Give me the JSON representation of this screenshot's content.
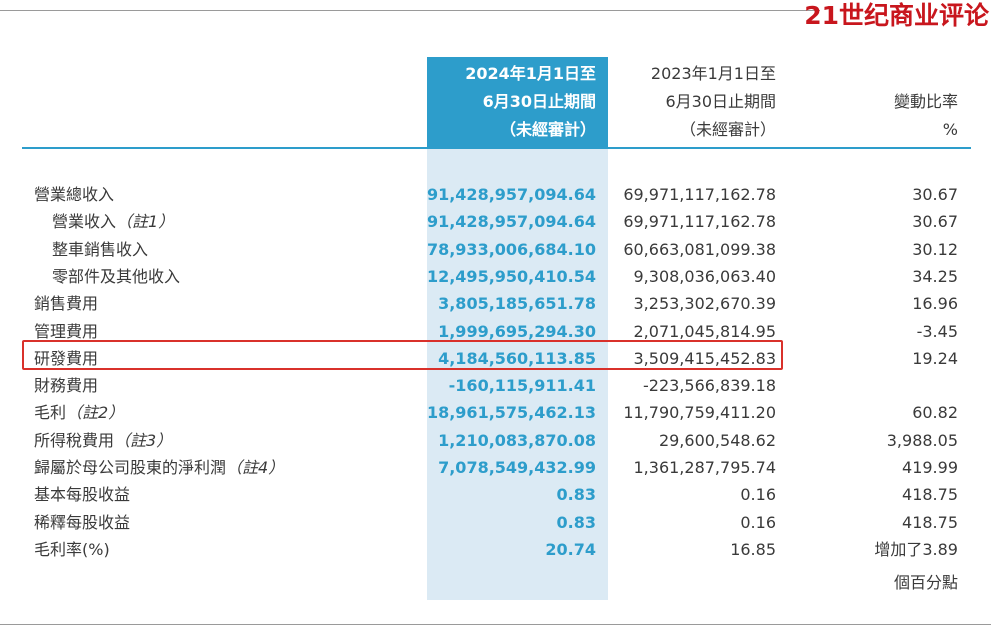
{
  "watermark": "21世纪商业评论",
  "header": {
    "current_period": [
      "2024年1月1日至",
      "6月30日止期間",
      "（未經審計）"
    ],
    "prior_period": [
      "2023年1月1日至",
      "6月30日止期間",
      "（未經審計）"
    ],
    "change": [
      "變動比率",
      "%"
    ]
  },
  "highlight_color": "#2d9dcb",
  "annotation_color": "#d9312b",
  "rows": [
    {
      "label": "營業總收入",
      "note": "",
      "current": "91,428,957,094.64",
      "prior": "69,971,117,162.78",
      "change": "30.67"
    },
    {
      "label": "營業收入",
      "note": "（註1）",
      "current": "91,428,957,094.64",
      "prior": "69,971,117,162.78",
      "change": "30.67"
    },
    {
      "label": "整車銷售收入",
      "note": "",
      "current": "78,933,006,684.10",
      "prior": "60,663,081,099.38",
      "change": "30.12"
    },
    {
      "label": "零部件及其他收入",
      "note": "",
      "current": "12,495,950,410.54",
      "prior": "9,308,036,063.40",
      "change": "34.25"
    },
    {
      "label": "銷售費用",
      "note": "",
      "current": "3,805,185,651.78",
      "prior": "3,253,302,670.39",
      "change": "16.96"
    },
    {
      "label": "管理費用",
      "note": "",
      "current": "1,999,695,294.30",
      "prior": "2,071,045,814.95",
      "change": "-3.45"
    },
    {
      "label": "研發費用",
      "note": "",
      "current": "4,184,560,113.85",
      "prior": "3,509,415,452.83",
      "change": "19.24"
    },
    {
      "label": "財務費用",
      "note": "",
      "current": "-160,115,911.41",
      "prior": "-223,566,839.18",
      "change": ""
    },
    {
      "label": "毛利",
      "note": "（註2）",
      "current": "18,961,575,462.13",
      "prior": "11,790,759,411.20",
      "change": "60.82"
    },
    {
      "label": "所得稅費用",
      "note": "（註3）",
      "current": "1,210,083,870.08",
      "prior": "29,600,548.62",
      "change": "3,988.05"
    },
    {
      "label": "歸屬於母公司股東的淨利潤",
      "note": "（註4）",
      "current": "7,078,549,432.99",
      "prior": "1,361,287,795.74",
      "change": "419.99"
    },
    {
      "label": "基本每股收益",
      "note": "",
      "current": "0.83",
      "prior": "0.16",
      "change": "418.75"
    },
    {
      "label": "稀釋每股收益",
      "note": "",
      "current": "0.83",
      "prior": "0.16",
      "change": "418.75"
    },
    {
      "label": "毛利率(%)",
      "note": "",
      "current": "20.74",
      "prior": "16.85",
      "change": "增加了3.89"
    }
  ],
  "change_continuation": "個百分點"
}
